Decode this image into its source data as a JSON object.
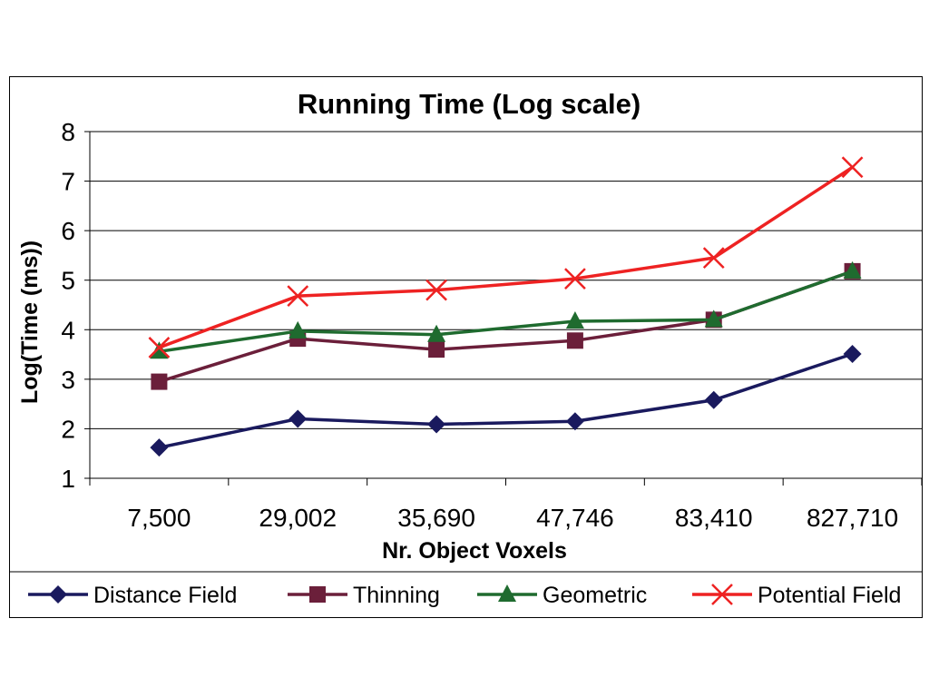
{
  "chart_data": {
    "type": "line",
    "title": "Running Time (Log scale)",
    "xlabel": "Nr. Object Voxels",
    "ylabel": "Log(Time (ms))",
    "categories": [
      "7,500",
      "29,002",
      "35,690",
      "47,746",
      "83,410",
      "827,710"
    ],
    "ylim": [
      1,
      8
    ],
    "yticks": [
      "1",
      "2",
      "3",
      "4",
      "5",
      "6",
      "7",
      "8"
    ],
    "grid": true,
    "legend_position": "bottom",
    "series": [
      {
        "name": "Distance Field",
        "values": [
          1.62,
          2.2,
          2.09,
          2.15,
          2.58,
          3.51
        ],
        "color": "#1a1a5e",
        "marker": "diamond"
      },
      {
        "name": "Thinning",
        "values": [
          2.95,
          3.82,
          3.6,
          3.78,
          4.2,
          5.18
        ],
        "color": "#6b1f3a",
        "marker": "square"
      },
      {
        "name": "Geometric",
        "values": [
          3.56,
          3.97,
          3.9,
          4.17,
          4.2,
          5.18
        ],
        "color": "#1f6b2f",
        "marker": "triangle"
      },
      {
        "name": "Potential Field",
        "values": [
          3.64,
          4.68,
          4.8,
          5.03,
          5.45,
          7.28
        ],
        "color": "#ee2222",
        "marker": "x"
      }
    ]
  }
}
